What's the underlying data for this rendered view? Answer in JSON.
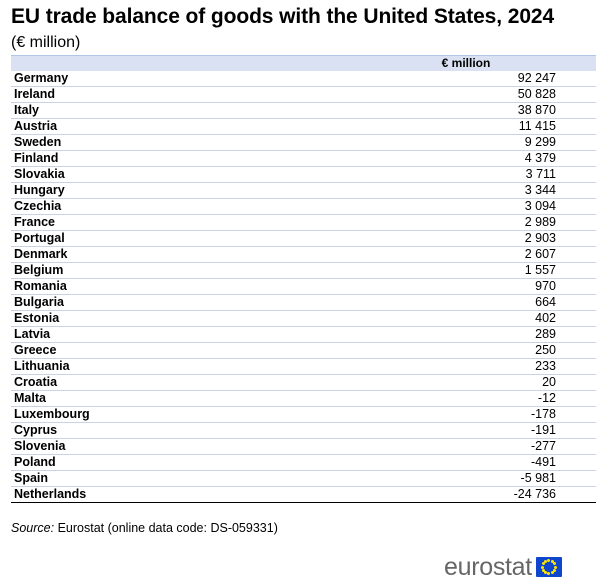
{
  "title": "EU trade balance of goods with the United States, 2024",
  "subtitle": "(€ million)",
  "table": {
    "column_header": "€ million",
    "rows": [
      {
        "country": "Germany",
        "value": "92 247"
      },
      {
        "country": "Ireland",
        "value": "50 828"
      },
      {
        "country": "Italy",
        "value": "38 870"
      },
      {
        "country": "Austria",
        "value": "11 415"
      },
      {
        "country": "Sweden",
        "value": "9 299"
      },
      {
        "country": "Finland",
        "value": "4 379"
      },
      {
        "country": "Slovakia",
        "value": "3 711"
      },
      {
        "country": "Hungary",
        "value": "3 344"
      },
      {
        "country": "Czechia",
        "value": "3 094"
      },
      {
        "country": "France",
        "value": "2 989"
      },
      {
        "country": "Portugal",
        "value": "2 903"
      },
      {
        "country": "Denmark",
        "value": "2 607"
      },
      {
        "country": "Belgium",
        "value": "1 557"
      },
      {
        "country": "Romania",
        "value": "970"
      },
      {
        "country": "Bulgaria",
        "value": "664"
      },
      {
        "country": "Estonia",
        "value": "402"
      },
      {
        "country": "Latvia",
        "value": "289"
      },
      {
        "country": "Greece",
        "value": "250"
      },
      {
        "country": "Lithuania",
        "value": "233"
      },
      {
        "country": "Croatia",
        "value": "20"
      },
      {
        "country": "Malta",
        "value": "-12"
      },
      {
        "country": "Luxembourg",
        "value": "-178"
      },
      {
        "country": "Cyprus",
        "value": "-191"
      },
      {
        "country": "Slovenia",
        "value": "-277"
      },
      {
        "country": "Poland",
        "value": "-491"
      },
      {
        "country": "Spain",
        "value": "-5 981"
      },
      {
        "country": "Netherlands",
        "value": "-24 736"
      }
    ]
  },
  "source": {
    "label": "Source:",
    "text": "Eurostat (online data code: DS-059331)"
  },
  "logo": {
    "text": "eurostat",
    "flag_icon": "eu-flag-icon",
    "flag_color": "#0e47cb",
    "star_color": "#ffe500"
  }
}
